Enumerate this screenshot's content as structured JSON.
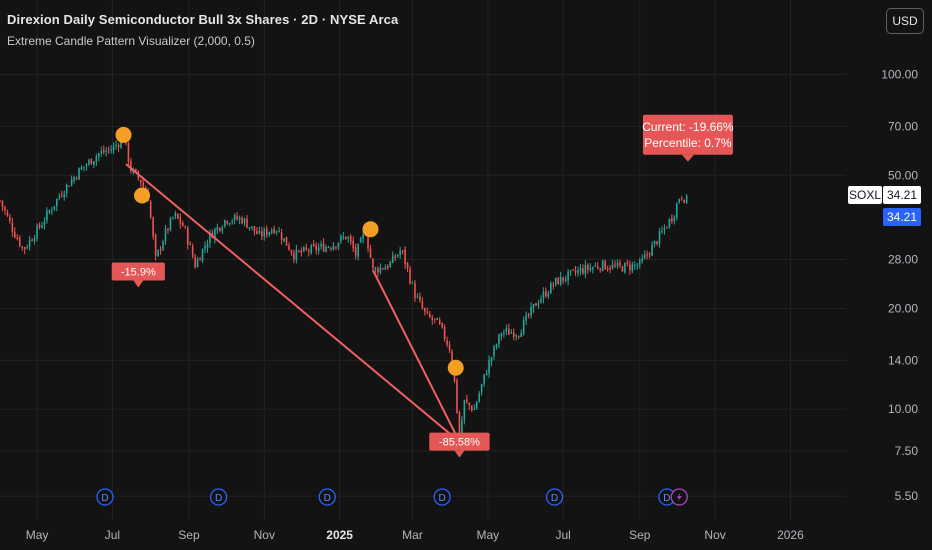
{
  "header": {
    "title": "Direxion Daily Semiconductor Bull 3x Shares · 2D · NYSE Arca",
    "indicator": "Extreme Candle Pattern Visualizer (2,000, 0.5)",
    "currency": "USD"
  },
  "price_tags": {
    "symbol": "SOXL",
    "last": "34.21",
    "current": "34.21"
  },
  "colors": {
    "background": "#131313",
    "bull": "#26a69a",
    "bear": "#ef5350",
    "marker": "#ffa726",
    "line": "#f06060",
    "label": "#e55757",
    "event": "#2962ff",
    "split": "#ab47bc",
    "grid": "#232323",
    "axis_text": "#b2b5be"
  },
  "chart_data": {
    "type": "candlestick",
    "symbol": "SOXL",
    "y_scale": "log",
    "ylim": [
      5.0,
      120.0
    ],
    "y_ticks": [
      {
        "value": 100,
        "label": "100.00"
      },
      {
        "value": 70,
        "label": "70.00"
      },
      {
        "value": 50,
        "label": "50.00"
      },
      {
        "value": 28,
        "label": "28.00"
      },
      {
        "value": 20,
        "label": "20.00"
      },
      {
        "value": 14,
        "label": "14.00"
      },
      {
        "value": 10,
        "label": "10.00"
      },
      {
        "value": 7.5,
        "label": "7.50"
      },
      {
        "value": 5.5,
        "label": "5.50"
      }
    ],
    "x_ticks": [
      {
        "date": "2024-05-01",
        "label": "May",
        "bold": false
      },
      {
        "date": "2024-07-01",
        "label": "Jul",
        "bold": false
      },
      {
        "date": "2024-09-01",
        "label": "Sep",
        "bold": false
      },
      {
        "date": "2024-11-01",
        "label": "Nov",
        "bold": false
      },
      {
        "date": "2025-01-01",
        "label": "2025",
        "bold": true
      },
      {
        "date": "2025-03-01",
        "label": "Mar",
        "bold": false
      },
      {
        "date": "2025-05-01",
        "label": "May",
        "bold": false
      },
      {
        "date": "2025-07-01",
        "label": "Jul",
        "bold": false
      },
      {
        "date": "2025-09-01",
        "label": "Sep",
        "bold": false
      },
      {
        "date": "2025-11-01",
        "label": "Nov",
        "bold": false
      },
      {
        "date": "2026-01-01",
        "label": "2026",
        "bold": false
      }
    ],
    "x_range": [
      "2024-04-01",
      "2026-02-15"
    ],
    "price_path": [
      [
        "2024-04-01",
        42
      ],
      [
        "2024-04-12",
        34
      ],
      [
        "2024-04-20",
        30
      ],
      [
        "2024-05-05",
        36
      ],
      [
        "2024-05-20",
        44
      ],
      [
        "2024-06-05",
        52
      ],
      [
        "2024-06-20",
        58
      ],
      [
        "2024-07-01",
        60
      ],
      [
        "2024-07-10",
        65
      ],
      [
        "2024-07-16",
        52
      ],
      [
        "2024-07-24",
        48
      ],
      [
        "2024-07-30",
        43
      ],
      [
        "2024-08-05",
        28
      ],
      [
        "2024-08-12",
        33
      ],
      [
        "2024-08-20",
        38
      ],
      [
        "2024-08-28",
        35
      ],
      [
        "2024-09-06",
        27
      ],
      [
        "2024-09-18",
        33
      ],
      [
        "2024-10-01",
        37
      ],
      [
        "2024-10-14",
        37
      ],
      [
        "2024-10-28",
        33
      ],
      [
        "2024-11-10",
        35
      ],
      [
        "2024-11-25",
        29
      ],
      [
        "2024-12-10",
        30
      ],
      [
        "2024-12-26",
        31
      ],
      [
        "2025-01-07",
        33
      ],
      [
        "2025-01-14",
        29
      ],
      [
        "2025-01-22",
        34
      ],
      [
        "2025-01-28",
        26
      ],
      [
        "2025-02-10",
        27
      ],
      [
        "2025-02-20",
        30
      ],
      [
        "2025-03-03",
        22
      ],
      [
        "2025-03-12",
        19
      ],
      [
        "2025-03-22",
        18
      ],
      [
        "2025-04-01",
        15
      ],
      [
        "2025-04-04",
        12
      ],
      [
        "2025-04-08",
        8.2
      ],
      [
        "2025-04-12",
        10.5
      ],
      [
        "2025-04-20",
        10
      ],
      [
        "2025-05-01",
        13.5
      ],
      [
        "2025-05-12",
        17
      ],
      [
        "2025-05-26",
        17
      ],
      [
        "2025-06-10",
        21
      ],
      [
        "2025-06-25",
        24
      ],
      [
        "2025-07-15",
        26
      ],
      [
        "2025-08-01",
        27
      ],
      [
        "2025-08-15",
        26.5
      ],
      [
        "2025-09-01",
        27
      ],
      [
        "2025-09-15",
        32
      ],
      [
        "2025-09-28",
        38
      ],
      [
        "2025-10-04",
        44
      ],
      [
        "2025-10-09",
        42
      ],
      [
        "2025-10-10",
        34.21
      ]
    ],
    "events": [
      {
        "name": "peak-2024-07",
        "date": "2024-07-10",
        "price": 66,
        "marker": true
      },
      {
        "name": "drop-2024-07",
        "date": "2024-07-25",
        "price": 43.5,
        "marker": true,
        "change_label": "-15.9%",
        "label_date": "2024-07-22",
        "label_price": 25.8
      },
      {
        "name": "peak-2025-01",
        "date": "2025-01-26",
        "price": 34.5,
        "marker": true
      },
      {
        "name": "crash-2025-04",
        "date": "2025-04-05",
        "price": 13.3,
        "marker": true,
        "change_label": "-85.58%",
        "label_date": "2025-04-08",
        "label_price": 8.0
      }
    ],
    "lines": [
      {
        "from": {
          "date": "2024-07-12",
          "price": 54
        },
        "to": {
          "date": "2025-04-08",
          "price": 8.0
        }
      },
      {
        "from": {
          "date": "2025-01-28",
          "price": 26
        },
        "to": {
          "date": "2025-04-08",
          "price": 8.0
        }
      }
    ],
    "current_annotation": {
      "date": "2025-10-10",
      "price": 53,
      "line1": "Current: -19.66%",
      "line2": "Percentile: 0.7%"
    },
    "dividend_markers": [
      "2024-06-25",
      "2024-09-25",
      "2024-12-22",
      "2025-03-25",
      "2025-06-24",
      "2025-09-23"
    ],
    "dividend_label": "D",
    "split_marker_date": "2025-10-03"
  }
}
